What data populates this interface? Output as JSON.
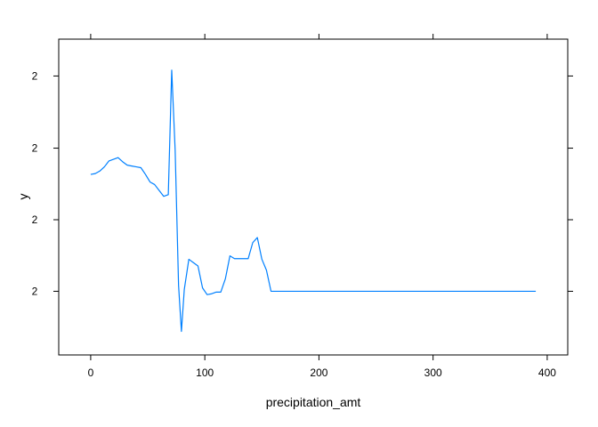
{
  "chart_data": {
    "type": "line",
    "title": "",
    "xlabel": "precipitation_amt",
    "ylabel": "y",
    "xlim": [
      -28,
      418
    ],
    "ylim": [
      0,
      1
    ],
    "x_ticks": [
      {
        "value": 0,
        "label": "0"
      },
      {
        "value": 100,
        "label": "100"
      },
      {
        "value": 200,
        "label": "200"
      },
      {
        "value": 300,
        "label": "300"
      },
      {
        "value": 400,
        "label": "400"
      }
    ],
    "y_ticks": [
      {
        "value": 0.8833,
        "label": "2"
      },
      {
        "value": 0.6548,
        "label": "2"
      },
      {
        "value": 0.4282,
        "label": "2"
      },
      {
        "value": 0.2016,
        "label": "2"
      }
    ],
    "grid": false,
    "line_color": "#0080ff",
    "series": [
      {
        "x": [
          0,
          4,
          8,
          12,
          16,
          20,
          24,
          28,
          32,
          36,
          40,
          44,
          48,
          52,
          56,
          60,
          64,
          68,
          71,
          74,
          77,
          79.5,
          82,
          86,
          90,
          94,
          98,
          102,
          106,
          110,
          114,
          118,
          122,
          126,
          130,
          134,
          138,
          142,
          146,
          150,
          154,
          158,
          390
        ],
        "y": [
          0.5716,
          0.5743,
          0.5823,
          0.5956,
          0.6143,
          0.6196,
          0.625,
          0.6117,
          0.601,
          0.5983,
          0.5956,
          0.593,
          0.5716,
          0.5476,
          0.5396,
          0.5209,
          0.5022,
          0.5075,
          0.9019,
          0.649,
          0.2203,
          0.0745,
          0.207,
          0.303,
          0.2923,
          0.2817,
          0.2123,
          0.191,
          0.1937,
          0.199,
          0.199,
          0.241,
          0.3136,
          0.305,
          0.305,
          0.305,
          0.305,
          0.3556,
          0.3717,
          0.303,
          0.2683,
          0.2016,
          0.2016
        ]
      }
    ]
  }
}
